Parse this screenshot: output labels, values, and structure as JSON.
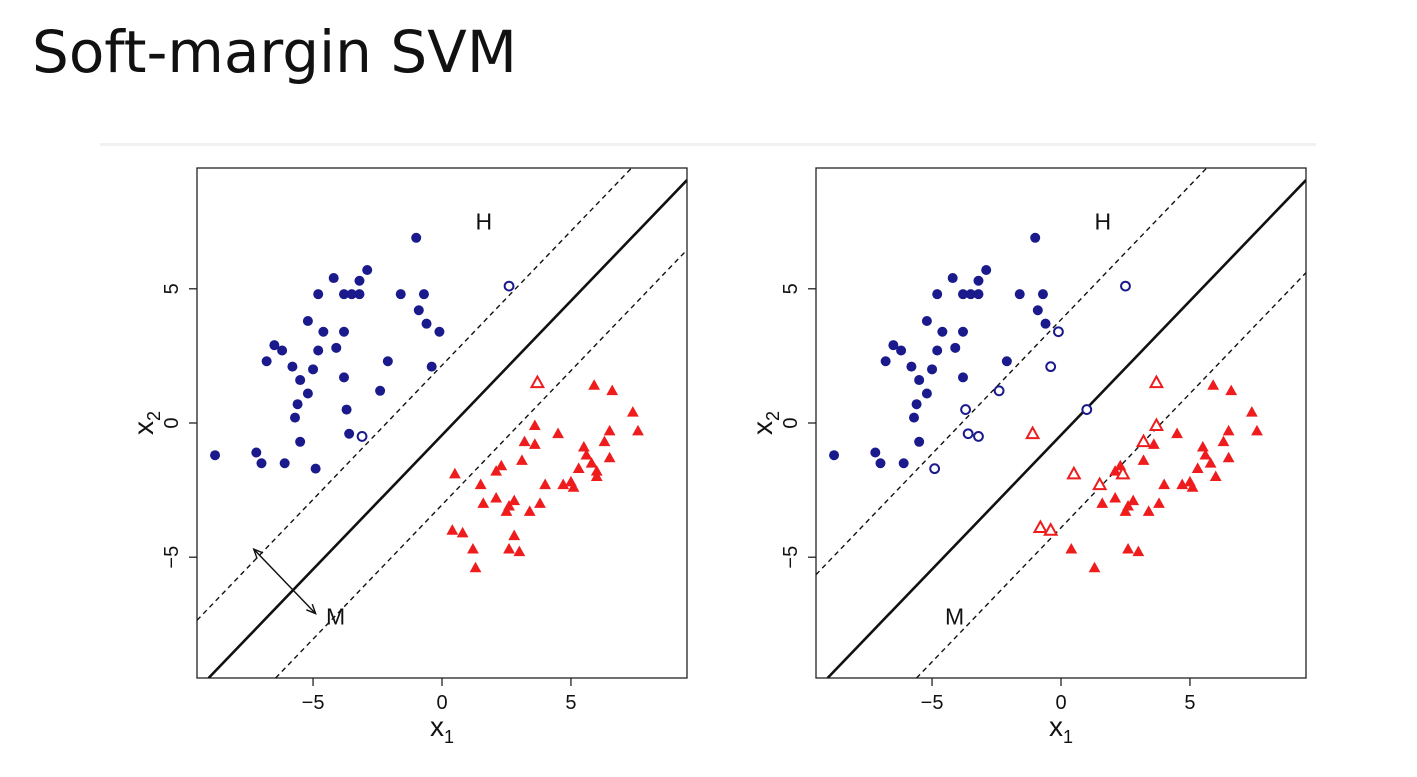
{
  "slide": {
    "title": "Soft-margin SVM"
  },
  "colors": {
    "blue": "#1a1a8c",
    "red": "#ee1c1c",
    "line": "#111111"
  },
  "chart_data": [
    {
      "type": "scatter",
      "title": "",
      "xlabel": "x",
      "xlabel_sub": "1",
      "ylabel": "x",
      "ylabel_sub": "2",
      "xlim": [
        -9.5,
        9.5
      ],
      "ylim": [
        -9.5,
        9.5
      ],
      "xticks": [
        -5,
        0,
        5
      ],
      "xtick_labels": [
        "−5",
        "0",
        "5"
      ],
      "yticks": [
        -5,
        0,
        5
      ],
      "ytick_labels": [
        "−5",
        "0",
        "5"
      ],
      "grid": false,
      "lines": [
        {
          "name": "H",
          "style": "solid",
          "slope": 1,
          "intercept": -0.45
        },
        {
          "style": "dashed",
          "slope": 1,
          "intercept": 2.15
        },
        {
          "style": "dashed",
          "slope": 1,
          "intercept": -3.05
        }
      ],
      "annotations": [
        {
          "text": "H",
          "x": 1.3,
          "y": 7.2
        },
        {
          "text": "M",
          "x": -4.5,
          "y": -7.5
        }
      ],
      "arrow": {
        "from": [
          -7.3,
          -4.7
        ],
        "to": [
          -4.9,
          -7.1
        ]
      },
      "series": [
        {
          "marker": "circle-filled",
          "color": "#1a1a8c",
          "points": [
            [
              -8.8,
              -1.2
            ],
            [
              -7.2,
              -1.1
            ],
            [
              -7.0,
              -1.5
            ],
            [
              -6.8,
              2.3
            ],
            [
              -6.5,
              2.9
            ],
            [
              -6.2,
              2.7
            ],
            [
              -6.1,
              -1.5
            ],
            [
              -5.8,
              2.1
            ],
            [
              -5.7,
              0.2
            ],
            [
              -5.6,
              0.7
            ],
            [
              -5.5,
              1.6
            ],
            [
              -5.5,
              -0.7
            ],
            [
              -5.2,
              3.8
            ],
            [
              -5.2,
              1.1
            ],
            [
              -5.0,
              2.0
            ],
            [
              -4.9,
              -1.7
            ],
            [
              -4.8,
              4.8
            ],
            [
              -4.8,
              2.7
            ],
            [
              -4.6,
              3.4
            ],
            [
              -4.2,
              5.4
            ],
            [
              -4.1,
              2.8
            ],
            [
              -3.8,
              4.8
            ],
            [
              -3.8,
              3.4
            ],
            [
              -3.8,
              1.7
            ],
            [
              -3.7,
              0.5
            ],
            [
              -3.6,
              -0.4
            ],
            [
              -3.5,
              4.8
            ],
            [
              -3.2,
              5.3
            ],
            [
              -3.2,
              4.8
            ],
            [
              -2.9,
              5.7
            ],
            [
              -2.4,
              1.2
            ],
            [
              -2.1,
              2.3
            ],
            [
              -1.6,
              4.8
            ],
            [
              -1.0,
              6.9
            ],
            [
              -0.9,
              4.2
            ],
            [
              -0.7,
              4.8
            ],
            [
              -0.6,
              3.7
            ],
            [
              -0.4,
              2.1
            ],
            [
              -0.1,
              3.4
            ]
          ]
        },
        {
          "marker": "circle-open",
          "color": "#1a1a8c",
          "points": [
            [
              2.6,
              5.1
            ],
            [
              -3.1,
              -0.5
            ]
          ]
        },
        {
          "marker": "triangle-filled",
          "color": "#ee1c1c",
          "points": [
            [
              0.4,
              -4.0
            ],
            [
              0.5,
              -1.9
            ],
            [
              0.8,
              -4.1
            ],
            [
              1.2,
              -4.7
            ],
            [
              1.3,
              -5.4
            ],
            [
              1.5,
              -2.3
            ],
            [
              1.6,
              -3.0
            ],
            [
              2.1,
              -2.8
            ],
            [
              2.1,
              -1.8
            ],
            [
              2.3,
              -1.6
            ],
            [
              2.5,
              -3.3
            ],
            [
              2.6,
              -3.1
            ],
            [
              2.6,
              -4.7
            ],
            [
              2.8,
              -4.2
            ],
            [
              2.8,
              -2.9
            ],
            [
              3.0,
              -4.8
            ],
            [
              3.1,
              -1.4
            ],
            [
              3.2,
              -0.7
            ],
            [
              3.4,
              -3.3
            ],
            [
              3.6,
              -0.8
            ],
            [
              3.6,
              -0.1
            ],
            [
              3.8,
              -3.0
            ],
            [
              4.0,
              -2.3
            ],
            [
              4.5,
              -0.4
            ],
            [
              4.7,
              -2.3
            ],
            [
              5.0,
              -2.2
            ],
            [
              5.1,
              -2.4
            ],
            [
              5.3,
              -1.7
            ],
            [
              5.5,
              -0.9
            ],
            [
              5.6,
              -1.2
            ],
            [
              5.8,
              -1.5
            ],
            [
              5.9,
              1.4
            ],
            [
              6.0,
              -1.8
            ],
            [
              6.0,
              -2.0
            ],
            [
              6.3,
              -0.7
            ],
            [
              6.5,
              -0.3
            ],
            [
              6.5,
              -1.3
            ],
            [
              6.6,
              1.2
            ],
            [
              7.4,
              0.4
            ],
            [
              7.6,
              -0.3
            ]
          ]
        },
        {
          "marker": "triangle-open",
          "color": "#ee1c1c",
          "points": [
            [
              3.7,
              1.5
            ]
          ]
        }
      ]
    },
    {
      "type": "scatter",
      "title": "",
      "xlabel": "x",
      "xlabel_sub": "1",
      "ylabel": "x",
      "ylabel_sub": "2",
      "xlim": [
        -9.5,
        9.5
      ],
      "ylim": [
        -9.5,
        9.5
      ],
      "xticks": [
        -5,
        0,
        5
      ],
      "xtick_labels": [
        "−5",
        "0",
        "5"
      ],
      "yticks": [
        -5,
        0,
        5
      ],
      "ytick_labels": [
        "−5",
        "0",
        "5"
      ],
      "grid": false,
      "lines": [
        {
          "name": "H",
          "style": "solid",
          "slope": 1,
          "intercept": -0.45
        },
        {
          "style": "dashed",
          "slope": 1,
          "intercept": 3.85
        },
        {
          "style": "dashed",
          "slope": 1,
          "intercept": -3.9
        }
      ],
      "annotations": [
        {
          "text": "H",
          "x": 1.3,
          "y": 7.2
        },
        {
          "text": "M",
          "x": -4.5,
          "y": -7.5
        }
      ],
      "series": [
        {
          "marker": "circle-filled",
          "color": "#1a1a8c",
          "points": [
            [
              -8.8,
              -1.2
            ],
            [
              -7.2,
              -1.1
            ],
            [
              -7.0,
              -1.5
            ],
            [
              -6.8,
              2.3
            ],
            [
              -6.5,
              2.9
            ],
            [
              -6.2,
              2.7
            ],
            [
              -6.1,
              -1.5
            ],
            [
              -5.8,
              2.1
            ],
            [
              -5.7,
              0.2
            ],
            [
              -5.6,
              0.7
            ],
            [
              -5.5,
              1.6
            ],
            [
              -5.5,
              -0.7
            ],
            [
              -5.2,
              3.8
            ],
            [
              -5.2,
              1.1
            ],
            [
              -5.0,
              2.0
            ],
            [
              -4.8,
              4.8
            ],
            [
              -4.8,
              2.7
            ],
            [
              -4.6,
              3.4
            ],
            [
              -4.2,
              5.4
            ],
            [
              -4.1,
              2.8
            ],
            [
              -3.8,
              4.8
            ],
            [
              -3.8,
              3.4
            ],
            [
              -3.8,
              1.7
            ],
            [
              -3.5,
              4.8
            ],
            [
              -3.2,
              5.3
            ],
            [
              -3.2,
              4.8
            ],
            [
              -2.9,
              5.7
            ],
            [
              -2.1,
              2.3
            ],
            [
              -1.6,
              4.8
            ],
            [
              -1.0,
              6.9
            ],
            [
              -0.9,
              4.2
            ],
            [
              -0.7,
              4.8
            ],
            [
              -0.6,
              3.7
            ]
          ]
        },
        {
          "marker": "circle-open",
          "color": "#1a1a8c",
          "points": [
            [
              2.5,
              5.1
            ],
            [
              -0.1,
              3.4
            ],
            [
              -0.4,
              2.1
            ],
            [
              -2.4,
              1.2
            ],
            [
              -3.7,
              0.5
            ],
            [
              -3.6,
              -0.4
            ],
            [
              -3.2,
              -0.5
            ],
            [
              -4.9,
              -1.7
            ],
            [
              1.0,
              0.5
            ]
          ]
        },
        {
          "marker": "triangle-filled",
          "color": "#ee1c1c",
          "points": [
            [
              0.4,
              -4.7
            ],
            [
              1.3,
              -5.4
            ],
            [
              1.6,
              -3.0
            ],
            [
              2.1,
              -2.8
            ],
            [
              2.3,
              -1.6
            ],
            [
              2.6,
              -3.1
            ],
            [
              2.6,
              -4.7
            ],
            [
              2.8,
              -2.9
            ],
            [
              3.0,
              -4.8
            ],
            [
              3.2,
              -1.4
            ],
            [
              3.4,
              -3.3
            ],
            [
              3.6,
              -0.8
            ],
            [
              3.8,
              -3.0
            ],
            [
              4.0,
              -2.3
            ],
            [
              4.5,
              -0.4
            ],
            [
              4.7,
              -2.3
            ],
            [
              5.0,
              -2.2
            ],
            [
              5.1,
              -2.4
            ],
            [
              5.3,
              -1.7
            ],
            [
              5.5,
              -0.9
            ],
            [
              5.6,
              -1.2
            ],
            [
              5.8,
              -1.5
            ],
            [
              5.9,
              1.4
            ],
            [
              6.0,
              -2.0
            ],
            [
              6.3,
              -0.7
            ],
            [
              6.5,
              -0.3
            ],
            [
              6.5,
              -1.3
            ],
            [
              6.6,
              1.2
            ],
            [
              7.4,
              0.4
            ],
            [
              7.6,
              -0.3
            ],
            [
              2.5,
              -3.3
            ],
            [
              2.1,
              -1.8
            ]
          ]
        },
        {
          "marker": "triangle-open",
          "color": "#ee1c1c",
          "points": [
            [
              3.7,
              1.5
            ],
            [
              3.7,
              -0.1
            ],
            [
              3.2,
              -0.7
            ],
            [
              -1.1,
              -0.4
            ],
            [
              0.5,
              -1.9
            ],
            [
              1.5,
              -2.3
            ],
            [
              2.4,
              -1.9
            ],
            [
              -0.8,
              -3.9
            ],
            [
              -0.4,
              -4.0
            ]
          ]
        }
      ]
    }
  ]
}
